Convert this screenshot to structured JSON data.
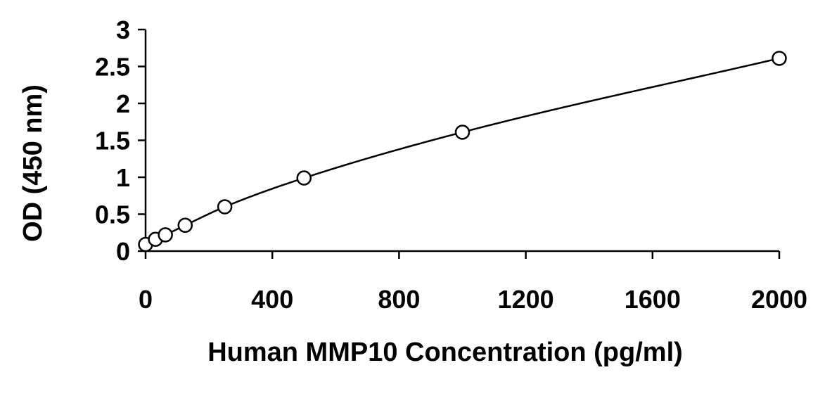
{
  "chart_data": {
    "type": "scatter",
    "title": "",
    "xlabel": "Human MMP10 Concentration (pg/ml)",
    "ylabel": "OD (450 nm)",
    "xlim": [
      0,
      2000
    ],
    "ylim": [
      0,
      3
    ],
    "x_ticks": [
      0,
      400,
      800,
      1200,
      1600,
      2000
    ],
    "x_tick_labels": [
      "0",
      "400",
      "800",
      "1200",
      "1600",
      "2000"
    ],
    "y_ticks": [
      0,
      0.5,
      1,
      1.5,
      2,
      2.5,
      3
    ],
    "y_tick_labels": [
      "0",
      "0.5",
      "1",
      "1.5",
      "2",
      "2.5",
      "3"
    ],
    "grid": false,
    "legend": "none",
    "series": [
      {
        "marker": "open-circle",
        "trendline": "smooth fitted curve",
        "color": "#000000",
        "x": [
          0,
          31.25,
          62.5,
          125,
          250,
          500,
          1000,
          2000
        ],
        "y": [
          0.09,
          0.16,
          0.22,
          0.35,
          0.6,
          0.99,
          1.61,
          2.61
        ]
      }
    ]
  }
}
